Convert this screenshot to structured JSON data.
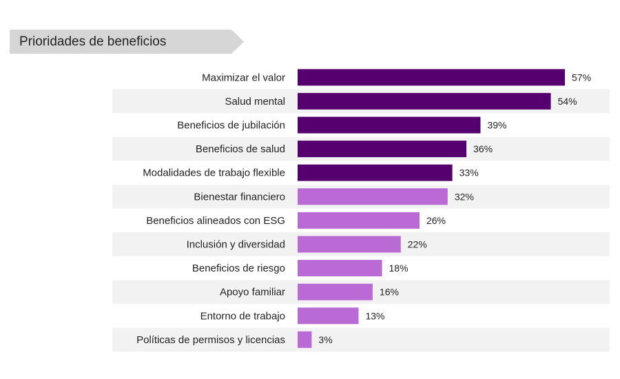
{
  "chart_data": {
    "type": "bar",
    "orientation": "horizontal",
    "title": "Prioridades de beneficios",
    "categories": [
      "Maximizar el valor",
      "Salud mental",
      "Beneficios de jubilación",
      "Beneficios de salud",
      "Modalidades de trabajo flexible",
      "Bienestar financiero",
      "Beneficios alineados con ESG",
      "Inclusión y diversidad",
      "Beneficios de riesgo",
      "Apoyo familiar",
      "Entorno de trabajo",
      "Políticas de permisos y licencias"
    ],
    "values": [
      57,
      54,
      39,
      36,
      33,
      32,
      26,
      22,
      18,
      16,
      13,
      3
    ],
    "value_labels": [
      "57%",
      "54%",
      "39%",
      "36%",
      "33%",
      "32%",
      "26%",
      "22%",
      "18%",
      "16%",
      "13%",
      "3%"
    ],
    "unit": "%",
    "xlim": [
      0,
      60
    ],
    "grid": false,
    "alternating_row_bands": true,
    "colors": {
      "dark_purple": "#560070",
      "light_purple": "#b96ad4",
      "band": "#f2f2f2",
      "title_tab": "#d6d6d6"
    },
    "bar_colors": [
      "dark_purple",
      "dark_purple",
      "dark_purple",
      "dark_purple",
      "dark_purple",
      "light_purple",
      "light_purple",
      "light_purple",
      "light_purple",
      "light_purple",
      "light_purple",
      "light_purple"
    ]
  }
}
